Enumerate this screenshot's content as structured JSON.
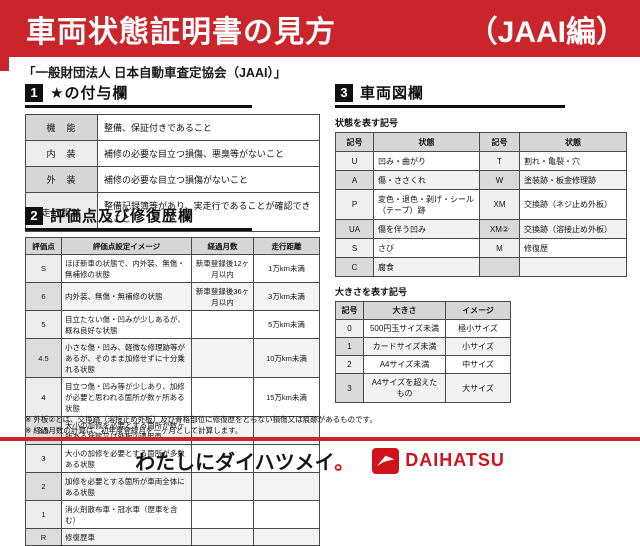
{
  "header": {
    "title": "車両状態証明書の見方",
    "edition": "（JAAI編）",
    "subtitle": "「一般財団法人 日本自動車査定協会（JAAI）」",
    "accent_color": "#c9252b"
  },
  "section1": {
    "number": "1",
    "title": "★の付与欄",
    "rows": [
      {
        "label": "機　能",
        "desc": "整備、保証付きであること"
      },
      {
        "label": "内　装",
        "desc": "補修の必要な目立つ損傷、悪臭等がないこと"
      },
      {
        "label": "外　装",
        "desc": "補修の必要な目立つ損傷がないこと"
      },
      {
        "label": "走行距離",
        "desc": "整備記録簿等があり、実走行であることが確認できること"
      }
    ]
  },
  "section2": {
    "number": "2",
    "title": "評価点及び修復歴欄",
    "headers": [
      "評価点",
      "評価点設定イメージ",
      "経過月数",
      "走行距離"
    ],
    "rows": [
      {
        "score": "S",
        "desc": "ほぼ新車の状態で、内外装、無傷・無補修の状態",
        "months": "新車登録後12ヶ月以内",
        "distance": "1万km未満"
      },
      {
        "score": "6",
        "desc": "内外装、無傷・無補修の状態",
        "months": "新車登録後36ヶ月以内",
        "distance": "3万km未満"
      },
      {
        "score": "5",
        "desc": "目立たない傷・凹みが少しあるが、概ね良好な状態",
        "months": "",
        "distance": "5万km未満"
      },
      {
        "score": "4.5",
        "desc": "小さな傷・凹み、軽微な修理跡等があるが、そのまま加修せずに十分乗れる状態",
        "months": "",
        "distance": "10万km未満"
      },
      {
        "score": "4",
        "desc": "目立つ傷・凹み等が少しあり、加修が必要と思われる箇所が数ヶ所ある状態",
        "months": "",
        "distance": "15万km未満"
      },
      {
        "score": "3.5",
        "desc": "大小の加修を必要とする箇所が数ヶ所ある状態又は外板②適用車",
        "months": "",
        "distance": ""
      },
      {
        "score": "3",
        "desc": "大小の加修を必要とする箇所が多数ある状態",
        "months": "",
        "distance": ""
      },
      {
        "score": "2",
        "desc": "加修を必要とする箇所が車両全体にある状態",
        "months": "",
        "distance": ""
      },
      {
        "score": "1",
        "desc": "消火剤散布車・冠水車（歴車を含む）",
        "months": "",
        "distance": ""
      },
      {
        "score": "R",
        "desc": "修復歴車",
        "months": "",
        "distance": ""
      }
    ]
  },
  "section3": {
    "number": "3",
    "title": "車両図欄",
    "state_table": {
      "caption": "状態を表す記号",
      "headers": [
        "記号",
        "状態",
        "記号",
        "状態"
      ],
      "rows": [
        [
          "U",
          "凹み・曲がり",
          "T",
          "割れ・亀裂・穴"
        ],
        [
          "A",
          "傷・ささくれ",
          "W",
          "塗装跡・板金修理跡"
        ],
        [
          "P",
          "変色・退色・剥げ・シール（テープ）跡",
          "XM",
          "交換跡（ネジ止め外板）"
        ],
        [
          "UA",
          "傷を伴う凹み",
          "XM②",
          "交換跡（溶接止め外板）"
        ],
        [
          "S",
          "さび",
          "M",
          "修復歴"
        ],
        [
          "C",
          "腐食",
          "",
          ""
        ]
      ]
    },
    "size_table": {
      "caption": "大きさを表す記号",
      "headers": [
        "記号",
        "大きさ",
        "イメージ"
      ],
      "rows": [
        [
          "0",
          "500円玉サイズ未満",
          "極小サイズ"
        ],
        [
          "1",
          "カードサイズ未満",
          "小サイズ"
        ],
        [
          "2",
          "A4サイズ未満",
          "中サイズ"
        ],
        [
          "3",
          "A4サイズを超えたもの",
          "大サイズ"
        ]
      ]
    }
  },
  "footnotes": [
    "※ 外板②とは、交換跡（溶接止め外板）及び骨格部位に修復歴をとらない損傷又は痕跡があるものです。",
    "※ 経過月数の計算は、初年度登録月を一ヶ月として計算します。"
  ],
  "footer": {
    "slogan_main": "わたしにダイハツメイ",
    "slogan_period": "。",
    "brand": "DAIHATSU",
    "brand_color": "#d0121b"
  }
}
